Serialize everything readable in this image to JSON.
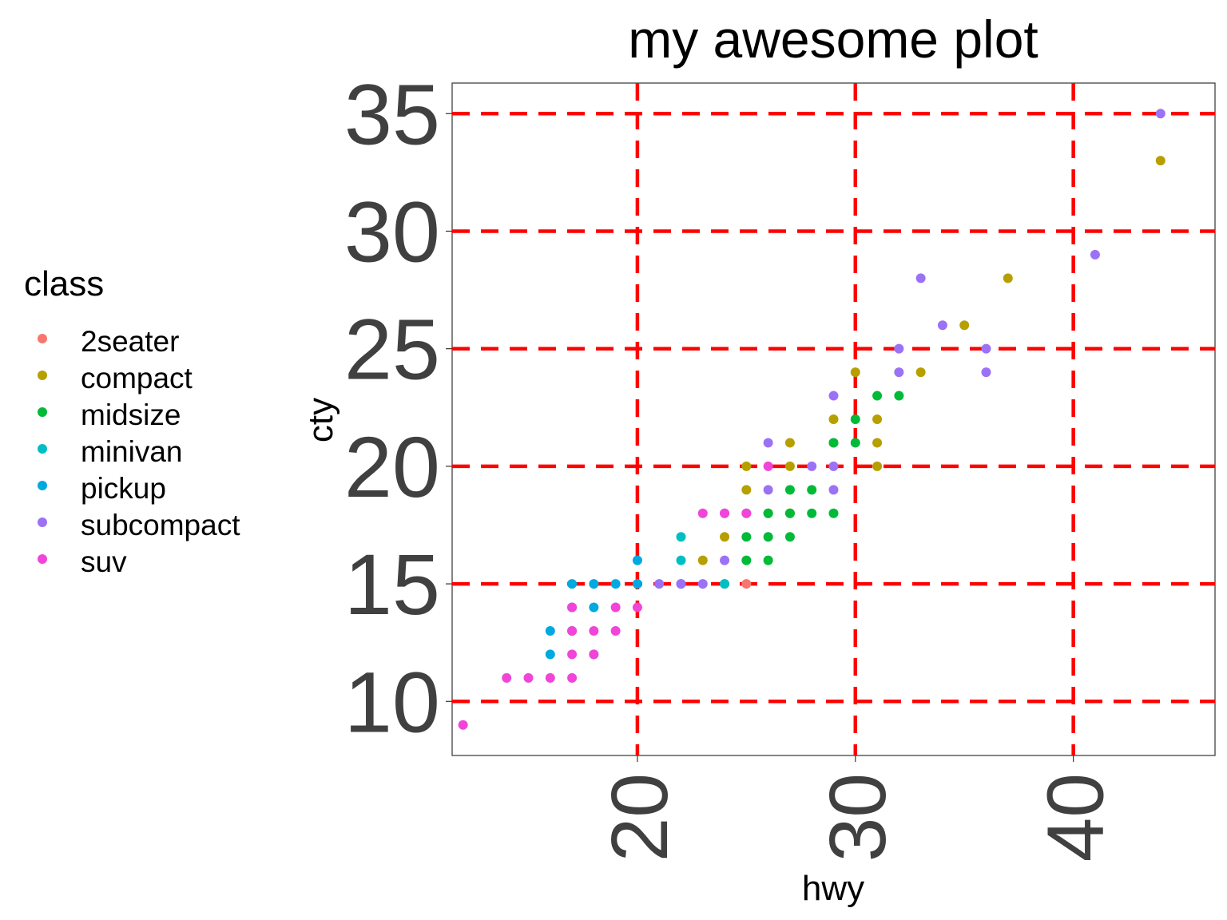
{
  "chart_data": {
    "type": "scatter",
    "title": "my awesome plot",
    "xlabel": "hwy",
    "ylabel": "cty",
    "xlim": [
      11.5,
      46.5
    ],
    "ylim": [
      7.7,
      36.3
    ],
    "x_ticks": [
      20,
      30,
      40
    ],
    "y_ticks": [
      10,
      15,
      20,
      25,
      30,
      35
    ],
    "grid": "major gridlines as red dashed lines",
    "legend": {
      "title": "class",
      "position": "left"
    },
    "series": [
      {
        "name": "2seater",
        "color": "#F8766D",
        "points": [
          [
            24,
            15
          ],
          [
            25,
            15
          ]
        ]
      },
      {
        "name": "compact",
        "color": "#B79F00",
        "points": [
          [
            23,
            16
          ],
          [
            24,
            17
          ],
          [
            25,
            19
          ],
          [
            25,
            20
          ],
          [
            26,
            18
          ],
          [
            27,
            18
          ],
          [
            27,
            20
          ],
          [
            27,
            21
          ],
          [
            29,
            21
          ],
          [
            29,
            22
          ],
          [
            30,
            24
          ],
          [
            31,
            20
          ],
          [
            31,
            21
          ],
          [
            31,
            22
          ],
          [
            33,
            24
          ],
          [
            35,
            26
          ],
          [
            37,
            28
          ],
          [
            44,
            33
          ]
        ]
      },
      {
        "name": "midsize",
        "color": "#00BA38",
        "points": [
          [
            25,
            16
          ],
          [
            25,
            17
          ],
          [
            25,
            18
          ],
          [
            26,
            16
          ],
          [
            26,
            17
          ],
          [
            26,
            18
          ],
          [
            27,
            17
          ],
          [
            27,
            18
          ],
          [
            27,
            19
          ],
          [
            28,
            18
          ],
          [
            28,
            19
          ],
          [
            29,
            18
          ],
          [
            29,
            21
          ],
          [
            30,
            21
          ],
          [
            30,
            22
          ],
          [
            31,
            23
          ],
          [
            32,
            23
          ]
        ]
      },
      {
        "name": "minivan",
        "color": "#00BFC4",
        "points": [
          [
            22,
            15
          ],
          [
            22,
            16
          ],
          [
            22,
            17
          ],
          [
            24,
            15
          ]
        ]
      },
      {
        "name": "pickup",
        "color": "#00A9E0",
        "points": [
          [
            16,
            12
          ],
          [
            16,
            13
          ],
          [
            17,
            13
          ],
          [
            17,
            14
          ],
          [
            17,
            15
          ],
          [
            18,
            12
          ],
          [
            18,
            14
          ],
          [
            18,
            15
          ],
          [
            19,
            15
          ],
          [
            20,
            15
          ],
          [
            20,
            16
          ]
        ]
      },
      {
        "name": "subcompact",
        "color": "#9B72F5",
        "points": [
          [
            21,
            15
          ],
          [
            22,
            15
          ],
          [
            23,
            15
          ],
          [
            24,
            16
          ],
          [
            24,
            18
          ],
          [
            26,
            19
          ],
          [
            26,
            21
          ],
          [
            28,
            20
          ],
          [
            29,
            19
          ],
          [
            29,
            20
          ],
          [
            29,
            23
          ],
          [
            32,
            24
          ],
          [
            32,
            25
          ],
          [
            33,
            28
          ],
          [
            34,
            26
          ],
          [
            36,
            24
          ],
          [
            36,
            25
          ],
          [
            41,
            29
          ],
          [
            44,
            35
          ]
        ]
      },
      {
        "name": "suv",
        "color": "#F145D9",
        "points": [
          [
            12,
            9
          ],
          [
            14,
            11
          ],
          [
            15,
            11
          ],
          [
            16,
            11
          ],
          [
            17,
            11
          ],
          [
            17,
            12
          ],
          [
            17,
            13
          ],
          [
            17,
            14
          ],
          [
            18,
            12
          ],
          [
            18,
            13
          ],
          [
            19,
            13
          ],
          [
            19,
            14
          ],
          [
            20,
            14
          ],
          [
            23,
            18
          ],
          [
            24,
            18
          ],
          [
            25,
            18
          ],
          [
            26,
            20
          ]
        ]
      }
    ]
  }
}
